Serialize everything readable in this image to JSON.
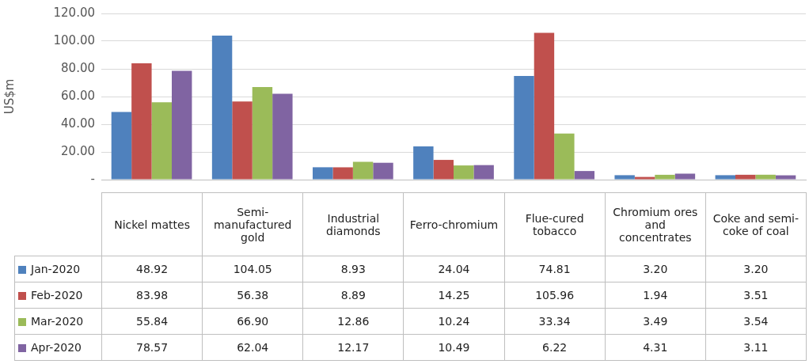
{
  "chart_data": {
    "type": "bar",
    "ylabel": "US$m",
    "categories": [
      "Nickel mattes",
      "Semi-manufactured gold",
      "Industrial diamonds",
      "Ferro-chromium",
      "Flue-cured tobacco",
      "Chromium ores and concentrates",
      "Coke and semi-coke of coal"
    ],
    "series": [
      {
        "name": "Jan-2020",
        "color": "#4f81bd",
        "values": [
          48.92,
          104.05,
          8.93,
          24.04,
          74.81,
          3.2,
          3.2
        ],
        "value_labels": [
          "48.92",
          "104.05",
          "8.93",
          "24.04",
          "74.81",
          "3.20",
          "3.20"
        ]
      },
      {
        "name": "Feb-2020",
        "color": "#c0504d",
        "values": [
          83.98,
          56.38,
          8.89,
          14.25,
          105.96,
          1.94,
          3.51
        ],
        "value_labels": [
          "83.98",
          "56.38",
          "8.89",
          "14.25",
          "105.96",
          "1.94",
          "3.51"
        ]
      },
      {
        "name": "Mar-2020",
        "color": "#9bbb59",
        "values": [
          55.84,
          66.9,
          12.86,
          10.24,
          33.34,
          3.49,
          3.54
        ],
        "value_labels": [
          "55.84",
          "66.90",
          "12.86",
          "10.24",
          "33.34",
          "3.49",
          "3.54"
        ]
      },
      {
        "name": "Apr-2020",
        "color": "#8064a2",
        "values": [
          78.57,
          62.04,
          12.17,
          10.49,
          6.22,
          4.31,
          3.11
        ],
        "value_labels": [
          "78.57",
          "62.04",
          "12.17",
          "10.49",
          "6.22",
          "4.31",
          "3.11"
        ]
      }
    ],
    "ylim": [
      0,
      120
    ],
    "yticks": [
      {
        "value": 0,
        "label": "-"
      },
      {
        "value": 20,
        "label": "20.00"
      },
      {
        "value": 40,
        "label": "40.00"
      },
      {
        "value": 60,
        "label": "60.00"
      },
      {
        "value": 80,
        "label": "80.00"
      },
      {
        "value": 100,
        "label": "100.00"
      },
      {
        "value": 120,
        "label": "120.00"
      }
    ],
    "grid": "y",
    "legend": "bottom left"
  }
}
